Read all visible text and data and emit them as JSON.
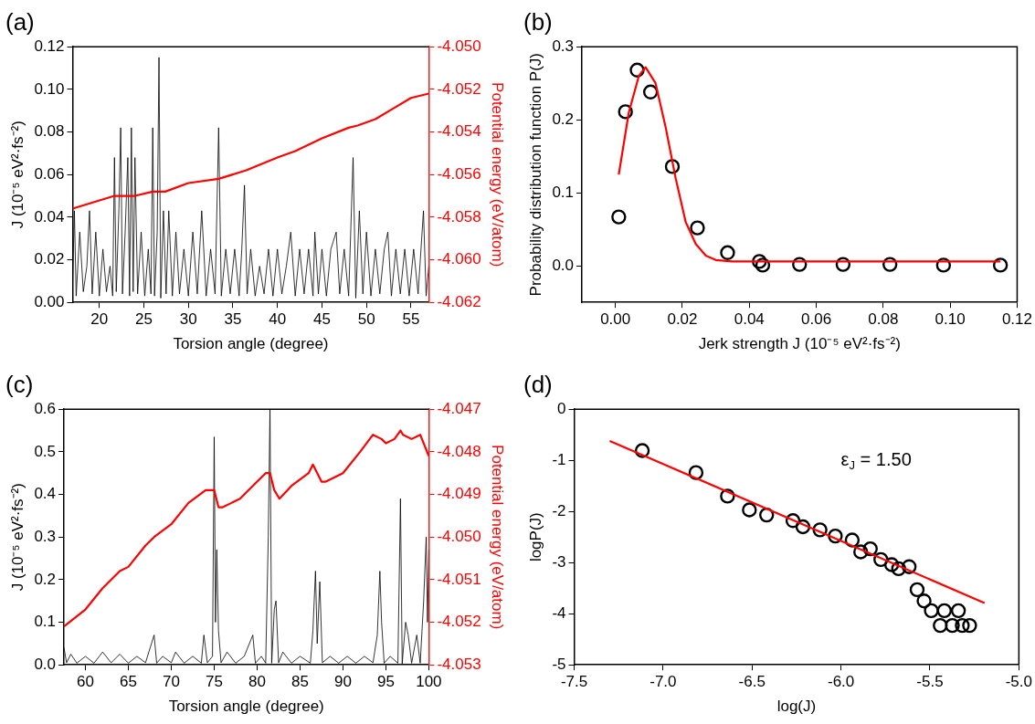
{
  "chart_data": [
    {
      "type": "line",
      "title": "(a)",
      "xlabel": "Torsion angle (degree)",
      "ylabel": "J (10⁻⁵ eV²·fs⁻²)",
      "y2label": "Potential energy (eV/atom)",
      "xlim": [
        17,
        57
      ],
      "xticks": [
        20,
        25,
        30,
        35,
        40,
        45,
        50,
        55
      ],
      "ylim": [
        0,
        0.12
      ],
      "yticks": [
        {
          "value": 0,
          "label": "0.00"
        },
        {
          "value": 0.02,
          "label": "0.02"
        },
        {
          "value": 0.04,
          "label": "0.04"
        },
        {
          "value": 0.06,
          "label": "0.06"
        },
        {
          "value": 0.08,
          "label": "0.08"
        },
        {
          "value": 0.1,
          "label": "0.10"
        },
        {
          "value": 0.12,
          "label": "0.12"
        }
      ],
      "y2lim": [
        -4.062,
        -4.05
      ],
      "y2ticks": [
        {
          "value": -4.062,
          "label": "-4.062"
        },
        {
          "value": -4.06,
          "label": "-4.060"
        },
        {
          "value": -4.058,
          "label": "-4.058"
        },
        {
          "value": -4.056,
          "label": "-4.056"
        },
        {
          "value": -4.054,
          "label": "-4.054"
        },
        {
          "value": -4.052,
          "label": "-4.052"
        },
        {
          "value": -4.05,
          "label": "-4.050"
        }
      ],
      "grid": false,
      "series": [
        {
          "color": "#000000",
          "x": [
            17,
            17.2,
            17.4,
            17.8,
            18.2,
            18.6,
            18.9,
            19.2,
            19.6,
            20,
            20.4,
            20.8,
            21.2,
            21.5,
            21.7,
            21.9,
            22.2,
            22.4,
            22.6,
            22.9,
            23.2,
            23.4,
            23.6,
            23.8,
            24,
            24.3,
            24.7,
            25.1,
            25.5,
            25.8,
            26,
            26.2,
            26.5,
            26.7,
            26.9,
            27.2,
            27.5,
            27.8,
            28.2,
            28.6,
            29,
            29.5,
            30,
            30.5,
            31,
            31.5,
            32,
            32.5,
            33,
            33.4,
            33.7,
            34.2,
            34.7,
            35.2,
            35.7,
            36,
            36.3,
            36.6,
            37,
            37.5,
            38,
            38.5,
            39,
            39.5,
            40,
            40.5,
            41,
            41.5,
            42,
            42.5,
            43,
            43.5,
            44,
            44.2,
            44.6,
            45,
            45.5,
            46,
            46.6,
            47,
            47.5,
            48,
            48.5,
            48.8,
            49.2,
            49.6,
            50,
            50.5,
            51,
            51.5,
            52,
            52.4,
            52.8,
            53.3,
            53.8,
            54.3,
            54.8,
            55.3,
            55.8,
            56.4,
            56.7,
            57
          ],
          "values": [
            0.01,
            0.043,
            0.003,
            0.033,
            0.005,
            0.017,
            0.043,
            0.004,
            0.033,
            0.003,
            0.025,
            0.005,
            0.017,
            0.003,
            0.068,
            0.005,
            0.044,
            0.082,
            0.004,
            0.033,
            0.068,
            0.003,
            0.082,
            0.005,
            0.068,
            0.004,
            0.033,
            0.003,
            0.025,
            0.004,
            0.082,
            0.003,
            0.033,
            0.115,
            0.002,
            0.043,
            0.004,
            0.043,
            0.003,
            0.033,
            0.004,
            0.025,
            0.003,
            0.033,
            0.004,
            0.043,
            0.003,
            0.025,
            0.004,
            0.082,
            0.003,
            0.025,
            0.004,
            0.025,
            0.003,
            0.025,
            0.055,
            0.004,
            0.025,
            0.003,
            0.017,
            0.004,
            0.025,
            0.003,
            0.025,
            0.004,
            0.017,
            0.033,
            0.003,
            0.025,
            0.004,
            0.025,
            0.003,
            0.033,
            0.004,
            0.025,
            0.003,
            0.025,
            0.033,
            0.004,
            0.025,
            0.003,
            0.068,
            0.002,
            0.043,
            0.004,
            0.033,
            0.003,
            0.025,
            0.004,
            0.025,
            0.033,
            0.003,
            0.025,
            0.004,
            0.025,
            0.003,
            0.025,
            0.004,
            0.043,
            0.003,
            0.017
          ]
        },
        {
          "color": "#ff0000",
          "axis": "y2",
          "x": [
            17,
            21.7,
            24,
            26,
            27.4,
            30,
            33.4,
            36.5,
            40,
            42,
            45,
            48,
            49,
            51,
            53,
            55,
            57
          ],
          "values": [
            -4.0576,
            -4.057,
            -4.057,
            -4.0568,
            -4.0568,
            -4.0564,
            -4.0562,
            -4.0558,
            -4.0552,
            -4.0549,
            -4.0543,
            -4.0538,
            -4.0537,
            -4.0534,
            -4.0529,
            -4.0524,
            -4.0522
          ]
        }
      ]
    },
    {
      "type": "scatter",
      "title": "(b)",
      "xlabel": "Jerk strength J (10⁻⁵ eV²·fs⁻²)",
      "ylabel": "Probability distribution function P(J)",
      "xlim": [
        -0.01,
        0.12
      ],
      "xticks": [
        {
          "value": 0,
          "label": "0.00"
        },
        {
          "value": 0.02,
          "label": "0.02"
        },
        {
          "value": 0.04,
          "label": "0.04"
        },
        {
          "value": 0.06,
          "label": "0.06"
        },
        {
          "value": 0.08,
          "label": "0.08"
        },
        {
          "value": 0.1,
          "label": "0.10"
        },
        {
          "value": 0.12,
          "label": "0.12"
        }
      ],
      "ylim": [
        -0.05,
        0.3
      ],
      "yticks": [
        {
          "value": 0,
          "label": "0.0"
        },
        0.1,
        0.2,
        0.3
      ],
      "grid": false,
      "series": [
        {
          "color": "#000000",
          "marker": "circle",
          "x": [
            0.001,
            0.003,
            0.0065,
            0.0105,
            0.017,
            0.0245,
            0.0335,
            0.043,
            0.044,
            0.055,
            0.068,
            0.082,
            0.098,
            0.115
          ],
          "values": [
            0.067,
            0.211,
            0.268,
            0.238,
            0.136,
            0.052,
            0.018,
            0.006,
            0.001,
            0.002,
            0.002,
            0.002,
            0.001,
            0.001
          ]
        },
        {
          "type": "line",
          "marker": "none",
          "color": "#ff0000",
          "x": [
            0.001,
            0.004,
            0.007,
            0.009,
            0.012,
            0.015,
            0.018,
            0.021,
            0.024,
            0.027,
            0.03,
            0.035,
            0.115
          ],
          "values": [
            0.125,
            0.21,
            0.26,
            0.272,
            0.25,
            0.19,
            0.12,
            0.06,
            0.03,
            0.014,
            0.008,
            0.006,
            0.006
          ]
        }
      ]
    },
    {
      "type": "line",
      "title": "(c)",
      "xlabel": "Torsion angle (degree)",
      "ylabel": "J (10⁻⁵ eV²·fs⁻²)",
      "y2label": "Potential energy (eV/atom)",
      "xlim": [
        57.5,
        100
      ],
      "xticks": [
        60,
        65,
        70,
        75,
        80,
        85,
        90,
        95,
        100
      ],
      "ylim": [
        0,
        0.6
      ],
      "yticks": [
        {
          "value": 0,
          "label": "0.0"
        },
        0.1,
        0.2,
        0.3,
        0.4,
        0.5,
        0.6
      ],
      "y2lim": [
        -4.053,
        -4.047
      ],
      "y2ticks": [
        -4.053,
        -4.052,
        -4.051,
        {
          "value": -4.05,
          "label": "-4.050"
        },
        -4.049,
        -4.048,
        -4.047
      ],
      "grid": false,
      "series": [
        {
          "color": "#000000",
          "x": [
            57.5,
            57.8,
            58.3,
            59,
            60,
            61,
            62,
            63,
            64,
            65,
            66,
            67,
            68,
            68.3,
            69,
            70,
            70.5,
            71.5,
            72.5,
            73.5,
            73.8,
            74.2,
            74.8,
            75,
            75.15,
            75.3,
            75.5,
            75.8,
            76.5,
            77.5,
            78.5,
            79.5,
            79.8,
            80.5,
            81,
            81.3,
            81.5,
            81.7,
            82,
            82.2,
            82.5,
            83,
            84,
            85,
            86.2,
            86.5,
            86.8,
            87,
            87.3,
            87.6,
            88.5,
            89.5,
            90.5,
            91.5,
            92.5,
            93.5,
            94,
            94.3,
            94.5,
            94.8,
            95.5,
            96.4,
            96.7,
            96.9,
            97.3,
            97.6,
            98,
            98.6,
            99,
            99.4,
            99.7,
            99.85,
            100
          ],
          "values": [
            0.04,
            0.005,
            0.025,
            0.004,
            0.02,
            0.004,
            0.03,
            0.005,
            0.025,
            0.004,
            0.02,
            0.005,
            0.07,
            0.004,
            0.02,
            0.005,
            0.03,
            0.004,
            0.02,
            0.004,
            0.07,
            0.005,
            0.02,
            0.535,
            0.1,
            0.27,
            0.08,
            0.005,
            0.03,
            0.004,
            0.02,
            0.07,
            0.004,
            0.02,
            0.004,
            0.3,
            0.6,
            0.004,
            0.13,
            0.15,
            0.005,
            0.03,
            0.004,
            0.02,
            0.004,
            0.08,
            0.22,
            0.05,
            0.195,
            0.005,
            0.02,
            0.004,
            0.02,
            0.004,
            0.02,
            0.005,
            0.07,
            0.22,
            0.1,
            0.004,
            0.02,
            0.004,
            0.39,
            0.003,
            0.1,
            0.07,
            0.004,
            0.07,
            0.004,
            0.15,
            0.3,
            0.1,
            0.27
          ]
        },
        {
          "color": "#ff0000",
          "axis": "y2",
          "x": [
            57.5,
            60,
            62,
            64,
            65,
            67,
            68,
            70,
            72,
            74,
            75,
            75.5,
            76,
            77,
            78,
            80,
            81,
            81.5,
            82,
            82.6,
            84,
            86,
            86.5,
            87.5,
            88,
            90,
            92,
            93.5,
            94.5,
            95,
            96,
            96.7,
            97,
            98,
            99,
            100
          ],
          "values": [
            -4.0521,
            -4.0517,
            -4.0512,
            -4.0508,
            -4.0507,
            -4.0502,
            -4.05,
            -4.0497,
            -4.0492,
            -4.0489,
            -4.0489,
            -4.0493,
            -4.0493,
            -4.0492,
            -4.0491,
            -4.0487,
            -4.0485,
            -4.0485,
            -4.0489,
            -4.0491,
            -4.0488,
            -4.0485,
            -4.0483,
            -4.0487,
            -4.0487,
            -4.0485,
            -4.048,
            -4.0476,
            -4.0477,
            -4.0478,
            -4.0477,
            -4.0475,
            -4.0476,
            -4.0477,
            -4.0476,
            -4.0481
          ]
        }
      ]
    },
    {
      "type": "scatter",
      "title": "(d)",
      "xlabel": "log(J)",
      "ylabel": "logP(J)",
      "xlim": [
        -7.5,
        -5
      ],
      "xticks": [
        -7.5,
        {
          "value": -7,
          "label": "-7.0"
        },
        -6.5,
        {
          "value": -6,
          "label": "-6.0"
        },
        -5.5,
        {
          "value": -5,
          "label": "-5.0"
        }
      ],
      "ylim": [
        -5,
        0
      ],
      "yticks": [
        -5,
        -4,
        -3,
        -2,
        -1,
        0
      ],
      "grid": false,
      "annotations": [
        "ε$_{J}$ = 1.50"
      ],
      "series": [
        {
          "color": "#000000",
          "marker": "circle",
          "x": [
            -7.117,
            -6.815,
            -6.638,
            -6.515,
            -6.418,
            -6.27,
            -6.214,
            -6.118,
            -6.032,
            -5.937,
            -5.889,
            -5.835,
            -5.776,
            -5.715,
            -5.676,
            -5.617,
            -5.572,
            -5.533,
            -5.492,
            -5.442,
            -5.419,
            -5.374,
            -5.34,
            -5.318,
            -5.277
          ],
          "values": [
            -0.81,
            -1.24,
            -1.7,
            -1.97,
            -2.07,
            -2.18,
            -2.3,
            -2.36,
            -2.48,
            -2.56,
            -2.79,
            -2.73,
            -2.94,
            -3.04,
            -3.12,
            -3.08,
            -3.53,
            -3.75,
            -3.94,
            -4.23,
            -3.94,
            -4.23,
            -3.94,
            -4.23,
            -4.23
          ]
        },
        {
          "type": "line",
          "marker": "none",
          "color": "#ff0000",
          "x": [
            -7.3,
            -5.193
          ],
          "values": [
            -0.62,
            -3.79
          ]
        }
      ]
    }
  ]
}
